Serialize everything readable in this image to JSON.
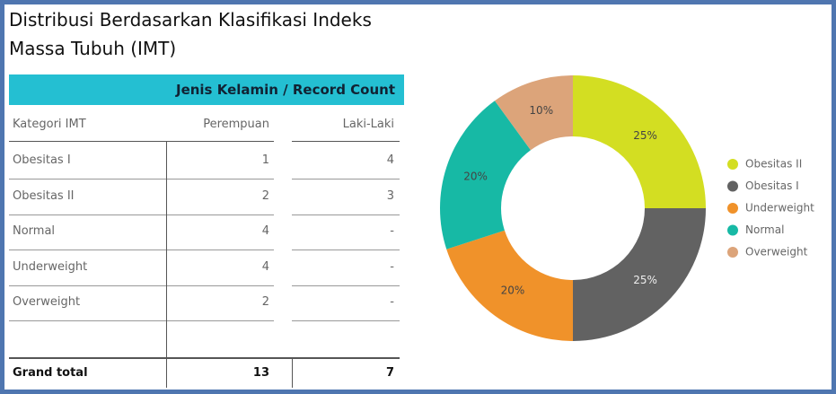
{
  "title_lines": [
    "Distribusi Berdasarkan Klasifikasi Indeks",
    "Massa Tubuh (IMT)"
  ],
  "table": {
    "group_header": "Jenis Kelamin / Record Count",
    "columns": [
      "Kategori IMT",
      "Perempuan",
      "Laki-Laki"
    ],
    "rows": [
      [
        "Obesitas I",
        1,
        4
      ],
      [
        "Obesitas II",
        2,
        3
      ],
      [
        "Normal",
        4,
        "-"
      ],
      [
        "Underweight",
        4,
        "-"
      ],
      [
        "Overweight",
        2,
        "-"
      ]
    ],
    "total": [
      "Grand total",
      13,
      7
    ]
  },
  "chart_data": {
    "type": "pie",
    "donut": true,
    "categories": [
      "Obesitas II",
      "Obesitas I",
      "Underweight",
      "Normal",
      "Overweight"
    ],
    "values": [
      25,
      25,
      20,
      20,
      10
    ],
    "value_labels": [
      "25%",
      "25%",
      "20%",
      "20%",
      "10%"
    ],
    "colors": [
      "#d3de22",
      "#626262",
      "#f0922a",
      "#17b9a5",
      "#dca47a"
    ],
    "legend": "right"
  }
}
